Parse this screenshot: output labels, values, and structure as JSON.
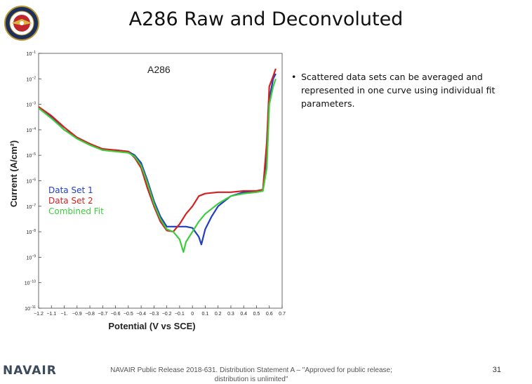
{
  "slide": {
    "title": "A286 Raw and Deconvoluted",
    "bullet": "Scattered data sets can be averaged and represented in one curve using individual fit parameters.",
    "brand": "NAVAIR",
    "footer": "NAVAIR Public Release 2018-631. Distribution Statement A – \"Approved for public release; distribution is unlimited\"",
    "page_number": "31"
  },
  "chart_data": {
    "type": "line",
    "title": "A286",
    "xlabel": "Potential (V vs SCE)",
    "ylabel": "Current (A/cm²)",
    "xlim": [
      -1.2,
      0.7
    ],
    "ylim_exponent": [
      -11,
      -1
    ],
    "y_scale": "log",
    "x_ticks": [
      "-1.2",
      "-1.1",
      "-1.",
      "-0.9",
      "-0.8",
      "-0.7",
      "-0.6",
      "-0.5",
      "-0.4",
      "-0.3",
      "-0.2",
      "-0.1",
      "0",
      "0.1",
      "0.2",
      "0.3",
      "0.4",
      "0.5",
      "0.6",
      "0.7"
    ],
    "y_tick_exponents": [
      "-1",
      "-2",
      "-3",
      "-4",
      "-5",
      "-6",
      "-7",
      "-8",
      "-9",
      "-10",
      "-11"
    ],
    "legend_position": "left",
    "series": [
      {
        "name": "Data Set 1",
        "color": "#1f3fbf",
        "points": [
          [
            -1.2,
            -3.1
          ],
          [
            -1.1,
            -3.5
          ],
          [
            -1.0,
            -4.0
          ],
          [
            -0.9,
            -4.3
          ],
          [
            -0.8,
            -4.55
          ],
          [
            -0.7,
            -4.8
          ],
          [
            -0.6,
            -4.8
          ],
          [
            -0.5,
            -4.85
          ],
          [
            -0.45,
            -5.0
          ],
          [
            -0.4,
            -5.3
          ],
          [
            -0.35,
            -6.0
          ],
          [
            -0.3,
            -6.8
          ],
          [
            -0.25,
            -7.4
          ],
          [
            -0.2,
            -7.8
          ],
          [
            -0.15,
            -7.8
          ],
          [
            -0.1,
            -7.8
          ],
          [
            -0.05,
            -7.8
          ],
          [
            0.0,
            -7.85
          ],
          [
            0.05,
            -8.2
          ],
          [
            0.07,
            -8.5
          ],
          [
            0.1,
            -7.9
          ],
          [
            0.15,
            -7.4
          ],
          [
            0.2,
            -7.0
          ],
          [
            0.3,
            -6.6
          ],
          [
            0.4,
            -6.45
          ],
          [
            0.5,
            -6.4
          ],
          [
            0.55,
            -6.35
          ],
          [
            0.58,
            -5.0
          ],
          [
            0.6,
            -2.8
          ],
          [
            0.63,
            -2.0
          ],
          [
            0.65,
            -1.8
          ]
        ]
      },
      {
        "name": "Data Set 2",
        "color": "#d42020",
        "points": [
          [
            -1.2,
            -3.1
          ],
          [
            -1.1,
            -3.45
          ],
          [
            -1.0,
            -3.9
          ],
          [
            -0.9,
            -4.3
          ],
          [
            -0.8,
            -4.55
          ],
          [
            -0.7,
            -4.75
          ],
          [
            -0.6,
            -4.8
          ],
          [
            -0.5,
            -4.85
          ],
          [
            -0.45,
            -5.1
          ],
          [
            -0.4,
            -5.5
          ],
          [
            -0.35,
            -6.3
          ],
          [
            -0.3,
            -7.0
          ],
          [
            -0.25,
            -7.6
          ],
          [
            -0.2,
            -7.95
          ],
          [
            -0.15,
            -8.0
          ],
          [
            -0.1,
            -7.7
          ],
          [
            -0.05,
            -7.3
          ],
          [
            0.0,
            -7.0
          ],
          [
            0.05,
            -6.6
          ],
          [
            0.1,
            -6.5
          ],
          [
            0.2,
            -6.45
          ],
          [
            0.3,
            -6.45
          ],
          [
            0.4,
            -6.4
          ],
          [
            0.5,
            -6.4
          ],
          [
            0.55,
            -6.35
          ],
          [
            0.58,
            -4.5
          ],
          [
            0.6,
            -2.3
          ],
          [
            0.63,
            -1.9
          ],
          [
            0.65,
            -1.6
          ]
        ]
      },
      {
        "name": "Combined Fit",
        "color": "#3ccc3c",
        "points": [
          [
            -1.2,
            -3.15
          ],
          [
            -1.1,
            -3.55
          ],
          [
            -1.0,
            -4.0
          ],
          [
            -0.9,
            -4.35
          ],
          [
            -0.8,
            -4.6
          ],
          [
            -0.7,
            -4.8
          ],
          [
            -0.6,
            -4.85
          ],
          [
            -0.5,
            -4.9
          ],
          [
            -0.45,
            -5.05
          ],
          [
            -0.4,
            -5.4
          ],
          [
            -0.35,
            -6.1
          ],
          [
            -0.3,
            -6.9
          ],
          [
            -0.25,
            -7.5
          ],
          [
            -0.2,
            -7.9
          ],
          [
            -0.15,
            -8.0
          ],
          [
            -0.1,
            -8.3
          ],
          [
            -0.07,
            -8.8
          ],
          [
            -0.05,
            -8.4
          ],
          [
            0.0,
            -8.0
          ],
          [
            0.05,
            -7.6
          ],
          [
            0.1,
            -7.3
          ],
          [
            0.2,
            -6.9
          ],
          [
            0.3,
            -6.6
          ],
          [
            0.4,
            -6.5
          ],
          [
            0.5,
            -6.45
          ],
          [
            0.55,
            -6.4
          ],
          [
            0.58,
            -5.5
          ],
          [
            0.6,
            -3.0
          ],
          [
            0.63,
            -2.3
          ],
          [
            0.65,
            -2.0
          ]
        ]
      }
    ]
  }
}
